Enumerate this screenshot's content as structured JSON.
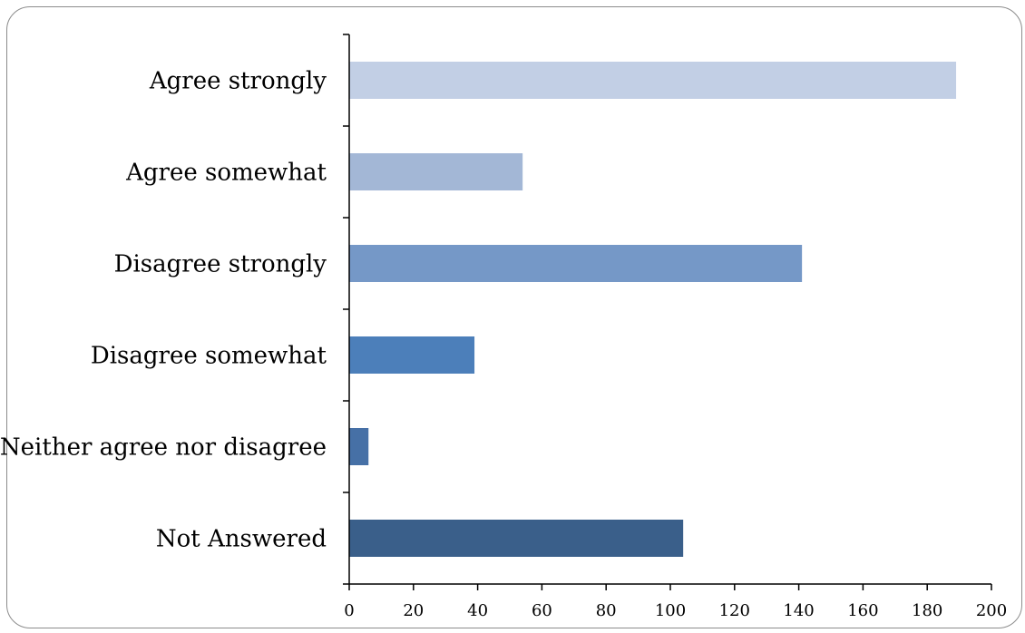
{
  "chart_data": {
    "type": "bar",
    "orientation": "horizontal",
    "categories": [
      "Agree strongly",
      "Agree somewhat",
      "Disagree strongly",
      "Disagree somewhat",
      "Neither agree nor disagree",
      "Not Answered"
    ],
    "values": [
      189,
      54,
      141,
      39,
      6,
      104
    ],
    "bar_colors": [
      "#c2cfe5",
      "#a3b7d6",
      "#7598c7",
      "#4c7fba",
      "#4670a6",
      "#3a5f8a"
    ],
    "xlim": [
      0,
      200
    ],
    "xticks": [
      0,
      20,
      40,
      60,
      80,
      100,
      120,
      140,
      160,
      180,
      200
    ],
    "grid": false,
    "legend": "none"
  }
}
